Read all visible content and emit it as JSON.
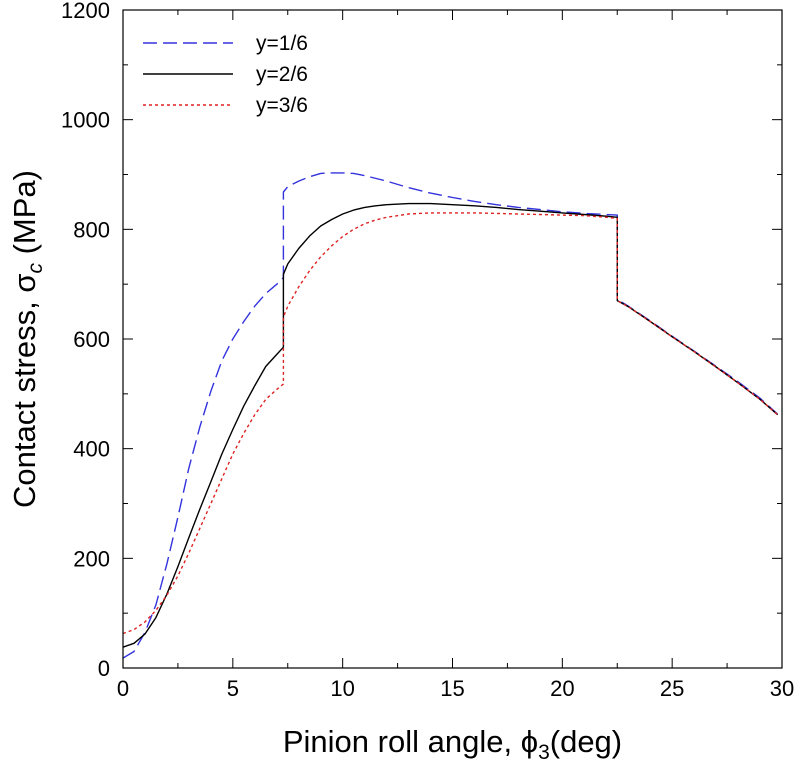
{
  "chart_data": {
    "type": "line",
    "xlabel_main": "Pinion roll angle, ",
    "xlabel_symbol": "ϕ",
    "xlabel_sub": "3",
    "xlabel_tail": "(deg)",
    "ylabel_main": "Contact stress, ",
    "ylabel_symbol": "σ",
    "ylabel_sub": "c",
    "ylabel_tail": " (MPa)",
    "xlim": [
      0,
      30
    ],
    "ylim": [
      0,
      1200
    ],
    "xticks": [
      0,
      5,
      10,
      15,
      20,
      25,
      30
    ],
    "yticks": [
      0,
      200,
      400,
      600,
      800,
      1000,
      1200
    ],
    "grid": false,
    "legend_position": "top-left",
    "series": [
      {
        "name": "y=1/6",
        "color": "#3333dd",
        "style": "dashed",
        "x": [
          0,
          0.5,
          1,
          1.5,
          2,
          2.5,
          3,
          3.5,
          4,
          4.5,
          5,
          5.5,
          6,
          6.5,
          7,
          7.3,
          7.3,
          7.5,
          8,
          8.5,
          9,
          9.5,
          10,
          10.5,
          11,
          12,
          13,
          14,
          15,
          16,
          17,
          18,
          19,
          20,
          21,
          22,
          22.5,
          22.5,
          23,
          24,
          25,
          26,
          27,
          28,
          29,
          29.8
        ],
        "y": [
          18,
          30,
          65,
          115,
          190,
          275,
          365,
          440,
          505,
          560,
          600,
          632,
          660,
          683,
          700,
          712,
          868,
          878,
          888,
          896,
          902,
          903,
          903,
          902,
          898,
          888,
          876,
          866,
          858,
          851,
          845,
          840,
          836,
          832,
          829,
          827,
          826,
          672,
          660,
          633,
          605,
          578,
          550,
          522,
          492,
          463
        ]
      },
      {
        "name": "y=2/6",
        "color": "#000000",
        "style": "solid",
        "x": [
          0,
          0.5,
          1,
          1.5,
          2,
          2.5,
          3,
          3.5,
          4,
          4.5,
          5,
          5.5,
          6,
          6.5,
          7,
          7.3,
          7.3,
          7.5,
          8,
          8.5,
          9,
          9.5,
          10,
          10.5,
          11,
          11.5,
          12,
          13,
          14,
          15,
          16,
          17,
          18,
          19,
          20,
          21,
          22,
          22.5,
          22.5,
          23,
          24,
          25,
          26,
          27,
          28,
          29,
          29.8
        ],
        "y": [
          38,
          45,
          62,
          92,
          135,
          185,
          238,
          290,
          340,
          390,
          435,
          478,
          515,
          550,
          572,
          585,
          718,
          737,
          765,
          788,
          806,
          818,
          828,
          835,
          840,
          843,
          845,
          847,
          847,
          845,
          843,
          840,
          836,
          833,
          830,
          827,
          824,
          822,
          670,
          659,
          632,
          604,
          577,
          549,
          520,
          490,
          462
        ]
      },
      {
        "name": "y=3/6",
        "color": "#dd2222",
        "style": "dotted",
        "x": [
          0,
          0.5,
          1,
          1.5,
          2,
          2.5,
          3,
          3.5,
          4,
          4.5,
          5,
          5.5,
          6,
          6.5,
          7,
          7.3,
          7.3,
          7.5,
          8,
          8.5,
          9,
          9.5,
          10,
          10.5,
          11,
          11.5,
          12,
          13,
          14,
          15,
          16,
          17,
          18,
          19,
          20,
          21,
          22,
          22.5,
          22.5,
          23,
          24,
          25,
          26,
          27,
          28,
          29,
          29.8
        ],
        "y": [
          63,
          70,
          84,
          105,
          133,
          168,
          210,
          255,
          300,
          345,
          390,
          428,
          462,
          490,
          508,
          518,
          640,
          660,
          695,
          725,
          750,
          770,
          787,
          800,
          810,
          817,
          822,
          828,
          830,
          830,
          830,
          829,
          828,
          827,
          826,
          825,
          822,
          820,
          670,
          659,
          632,
          604,
          577,
          549,
          520,
          490,
          462
        ]
      }
    ]
  }
}
